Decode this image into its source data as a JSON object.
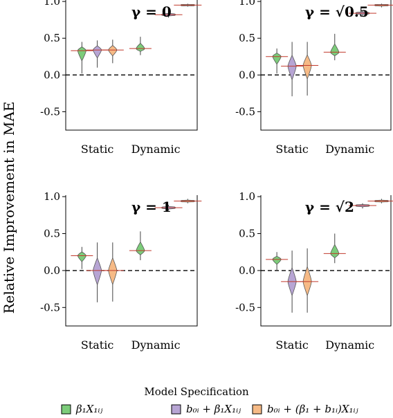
{
  "ylabel": "Relative Improvement in MAE",
  "legend": {
    "title": "Model Specification",
    "items": [
      {
        "label": "β₁X₁ᵢⱼ",
        "color": "#7ccc7a"
      },
      {
        "label": "b₀ᵢ + β₁X₁ᵢⱼ",
        "color": "#b7a5d4"
      },
      {
        "label": "b₀ᵢ + (β₁ + b₁ᵢ)X₁ᵢⱼ",
        "color": "#f6ba86"
      }
    ]
  },
  "chart_data": [
    {
      "type": "violin",
      "title": "γ = 0",
      "categories": [
        "Static",
        "Dynamic"
      ],
      "ylim": [
        -0.75,
        1.02
      ],
      "yticks": [
        1.0,
        0.5,
        0.0,
        -0.5
      ],
      "reference_line": 0.0,
      "series": [
        {
          "name": "β₁X₁ᵢⱼ",
          "static": {
            "median": 0.33,
            "min": 0.02,
            "max": 0.45
          },
          "dynamic": {
            "median": 0.36,
            "min": 0.27,
            "max": 0.52
          }
        },
        {
          "name": "b₀ᵢ + β₁X₁ᵢⱼ",
          "static": {
            "median": 0.34,
            "min": 0.1,
            "max": 0.47
          },
          "dynamic": {
            "median": 0.82,
            "min": 0.78,
            "max": 0.86
          }
        },
        {
          "name": "b₀ᵢ + (β₁ + b₁ᵢ)X₁ᵢⱼ",
          "static": {
            "median": 0.34,
            "min": 0.16,
            "max": 0.48
          },
          "dynamic": {
            "median": 0.95,
            "min": 0.93,
            "max": 0.97
          }
        }
      ]
    },
    {
      "type": "violin",
      "title": "γ = √0.5",
      "categories": [
        "Static",
        "Dynamic"
      ],
      "ylim": [
        -0.75,
        1.02
      ],
      "yticks": [
        1.0,
        0.5,
        0.0,
        -0.5
      ],
      "reference_line": 0.0,
      "series": [
        {
          "name": "β₁X₁ᵢⱼ",
          "static": {
            "median": 0.25,
            "min": 0.02,
            "max": 0.36
          },
          "dynamic": {
            "median": 0.31,
            "min": 0.2,
            "max": 0.56
          }
        },
        {
          "name": "b₀ᵢ + β₁X₁ᵢⱼ",
          "static": {
            "median": 0.12,
            "min": -0.29,
            "max": 0.45
          },
          "dynamic": {
            "median": 0.84,
            "min": 0.8,
            "max": 0.88
          }
        },
        {
          "name": "b₀ᵢ + (β₁ + b₁ᵢ)X₁ᵢⱼ",
          "static": {
            "median": 0.13,
            "min": -0.28,
            "max": 0.45
          },
          "dynamic": {
            "median": 0.95,
            "min": 0.92,
            "max": 0.97
          }
        }
      ]
    },
    {
      "type": "violin",
      "title": "γ = 1",
      "categories": [
        "Static",
        "Dynamic"
      ],
      "ylim": [
        -0.75,
        1.02
      ],
      "yticks": [
        1.0,
        0.5,
        0.0,
        -0.5
      ],
      "reference_line": 0.0,
      "series": [
        {
          "name": "β₁X₁ᵢⱼ",
          "static": {
            "median": 0.2,
            "min": 0.02,
            "max": 0.32
          },
          "dynamic": {
            "median": 0.27,
            "min": 0.14,
            "max": 0.53
          }
        },
        {
          "name": "b₀ᵢ + β₁X₁ᵢⱼ",
          "static": {
            "median": 0.0,
            "min": -0.43,
            "max": 0.38
          },
          "dynamic": {
            "median": 0.85,
            "min": 0.81,
            "max": 0.89
          }
        },
        {
          "name": "b₀ᵢ + (β₁ + b₁ᵢ)X₁ᵢⱼ",
          "static": {
            "median": 0.0,
            "min": -0.42,
            "max": 0.38
          },
          "dynamic": {
            "median": 0.94,
            "min": 0.91,
            "max": 0.97
          }
        }
      ]
    },
    {
      "type": "violin",
      "title": "γ = √2",
      "categories": [
        "Static",
        "Dynamic"
      ],
      "ylim": [
        -0.75,
        1.02
      ],
      "yticks": [
        1.0,
        0.5,
        0.0,
        -0.5
      ],
      "reference_line": 0.0,
      "series": [
        {
          "name": "β₁X₁ᵢⱼ",
          "static": {
            "median": 0.15,
            "min": 0.0,
            "max": 0.25
          },
          "dynamic": {
            "median": 0.23,
            "min": 0.1,
            "max": 0.5
          }
        },
        {
          "name": "b₀ᵢ + β₁X₁ᵢⱼ",
          "static": {
            "median": -0.15,
            "min": -0.57,
            "max": 0.27
          },
          "dynamic": {
            "median": 0.88,
            "min": 0.84,
            "max": 0.91
          }
        },
        {
          "name": "b₀ᵢ + (β₁ + b₁ᵢ)X₁ᵢⱼ",
          "static": {
            "median": -0.15,
            "min": -0.57,
            "max": 0.3
          },
          "dynamic": {
            "median": 0.94,
            "min": 0.91,
            "max": 0.97
          }
        }
      ]
    }
  ]
}
